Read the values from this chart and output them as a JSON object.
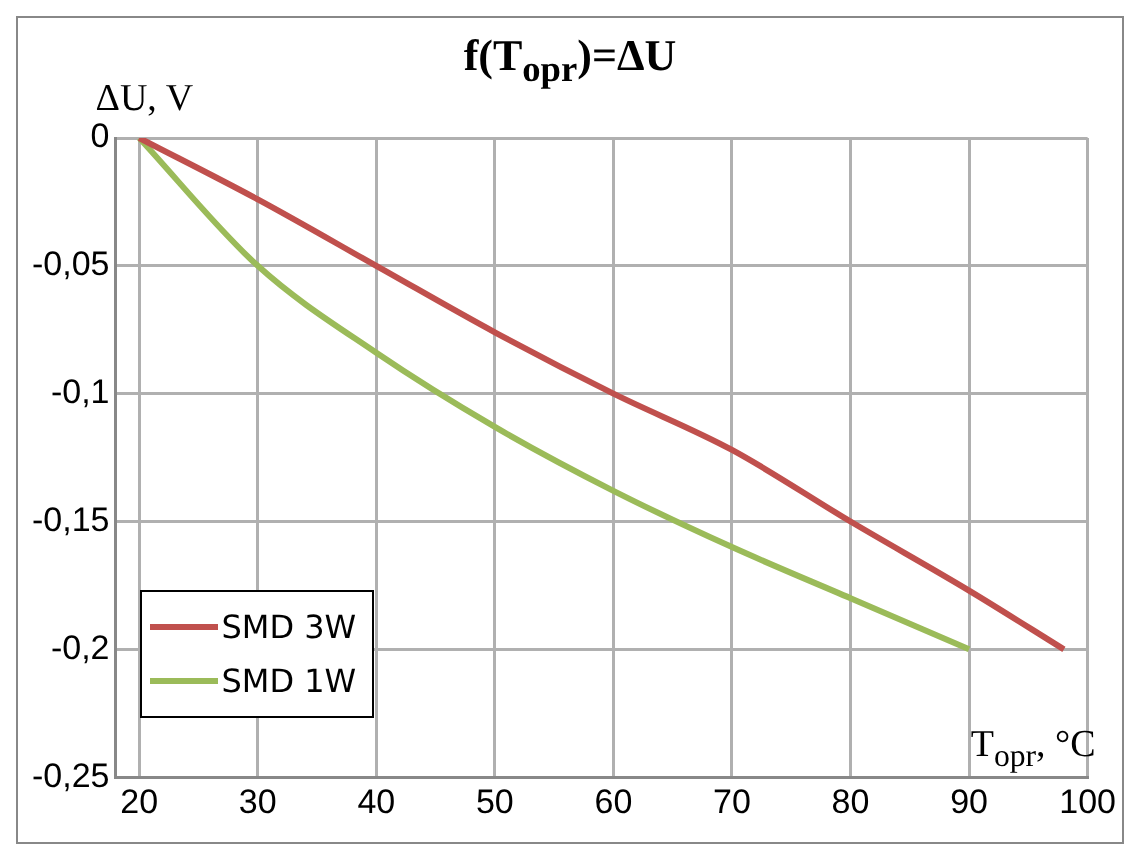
{
  "chart_data": {
    "type": "line",
    "title": "f(T$_{opr}$)=ΔU",
    "xlabel": "T$_{opr}$, °C",
    "ylabel": "ΔU, V",
    "xlim": [
      18,
      100
    ],
    "xticks": [
      20,
      30,
      40,
      50,
      60,
      70,
      80,
      90,
      100
    ],
    "ylim": [
      -0.25,
      0
    ],
    "yticks": [
      {
        "value": -0.25,
        "label": "-0,25"
      },
      {
        "value": -0.2,
        "label": "-0,2"
      },
      {
        "value": -0.15,
        "label": "-0,15"
      },
      {
        "value": -0.1,
        "label": "-0,1"
      },
      {
        "value": -0.05,
        "label": "-0,05"
      },
      {
        "value": 0,
        "label": "0"
      }
    ],
    "grid": true,
    "legend": "bottom left",
    "marker": "none",
    "line_style": "solid",
    "series": [
      {
        "name": "SMD 3W",
        "color": "#c0504d",
        "x": [
          20,
          30,
          40,
          50,
          60,
          70,
          80,
          90,
          98
        ],
        "values": [
          0,
          -0.024,
          -0.05,
          -0.076,
          -0.1,
          -0.122,
          -0.15,
          -0.177,
          -0.2
        ]
      },
      {
        "name": "SMD 1W",
        "color": "#9bbb59",
        "x": [
          20,
          30,
          40,
          50,
          60,
          70,
          80,
          90
        ],
        "values": [
          0,
          -0.05,
          -0.084,
          -0.113,
          -0.138,
          -0.16,
          -0.18,
          -0.2
        ]
      }
    ]
  }
}
